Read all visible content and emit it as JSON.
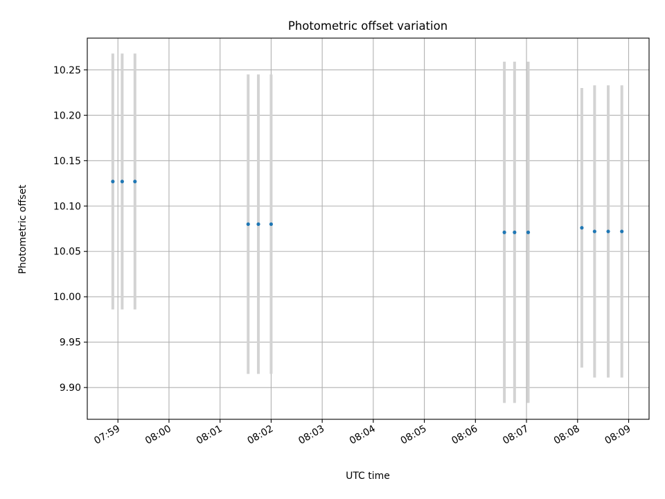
{
  "chart_data": {
    "type": "scatter",
    "title": "Photometric offset variation",
    "xlabel": "UTC time",
    "ylabel": "Photometric offset",
    "grid": true,
    "point_color": "#1f77b4",
    "errorbar_color": "#d3d3d3",
    "grid_color": "#b0b0b0",
    "xlim": [
      "07:58:24",
      "08:09:24"
    ],
    "ylim": [
      9.865,
      10.285
    ],
    "x_ticks": [
      "07:59",
      "08:00",
      "08:01",
      "08:02",
      "08:03",
      "08:04",
      "08:05",
      "08:06",
      "08:07",
      "08:08",
      "08:09"
    ],
    "y_ticks": [
      "9.90",
      "9.95",
      "10.00",
      "10.05",
      "10.10",
      "10.15",
      "10.20",
      "10.25"
    ],
    "points": [
      {
        "x": "07:58:54",
        "y": 10.127,
        "err": 0.141
      },
      {
        "x": "07:59:05",
        "y": 10.127,
        "err": 0.141
      },
      {
        "x": "07:59:20",
        "y": 10.127,
        "err": 0.141
      },
      {
        "x": "08:01:33",
        "y": 10.08,
        "err": 0.165
      },
      {
        "x": "08:01:45",
        "y": 10.08,
        "err": 0.165
      },
      {
        "x": "08:02:00",
        "y": 10.08,
        "err": 0.165
      },
      {
        "x": "08:06:34",
        "y": 10.071,
        "err": 0.188
      },
      {
        "x": "08:06:46",
        "y": 10.071,
        "err": 0.188
      },
      {
        "x": "08:07:02",
        "y": 10.071,
        "err": 0.188
      },
      {
        "x": "08:08:05",
        "y": 10.076,
        "err": 0.154
      },
      {
        "x": "08:08:20",
        "y": 10.072,
        "err": 0.161
      },
      {
        "x": "08:08:36",
        "y": 10.072,
        "err": 0.161
      },
      {
        "x": "08:08:52",
        "y": 10.072,
        "err": 0.161
      }
    ]
  }
}
